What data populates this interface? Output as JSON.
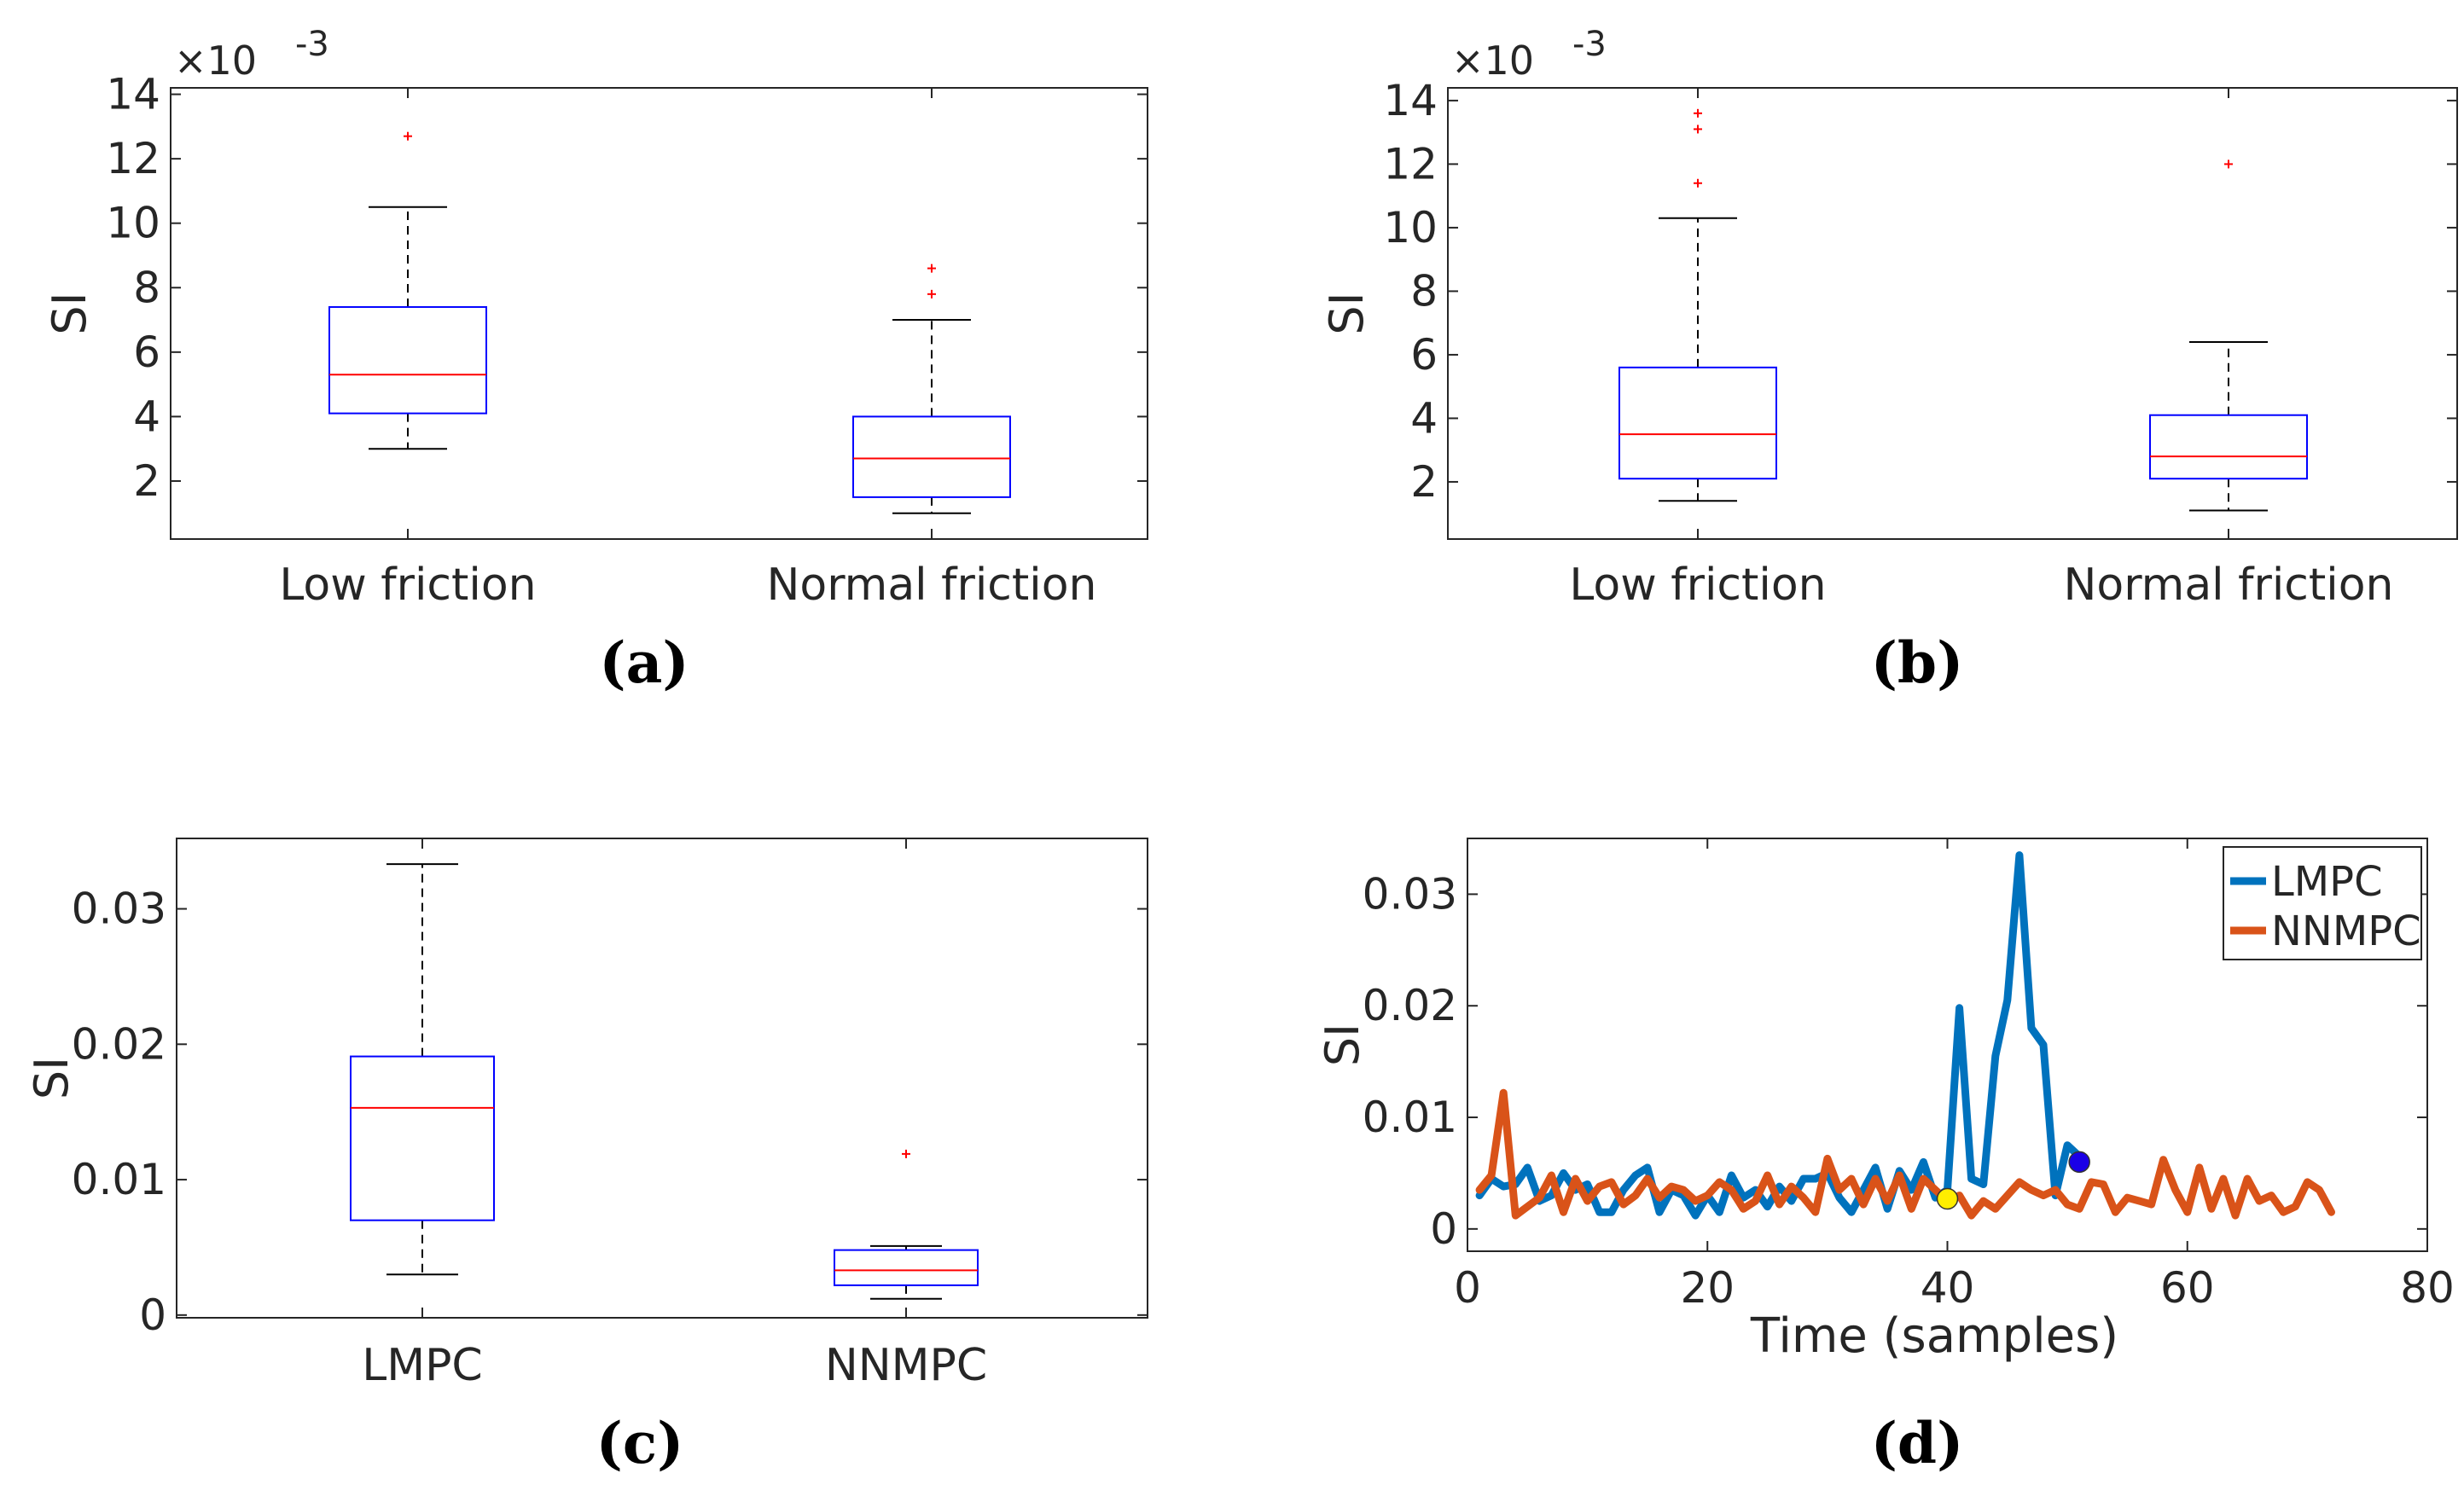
{
  "colors": {
    "box": "#0000ff",
    "median": "#ff0000",
    "outlier": "#ff0000",
    "whisker": "#000000",
    "frame": "#262626",
    "lmpc": "#0072bd",
    "nnmpc": "#d95319",
    "yellow_marker": "#ffee00",
    "blue_marker": "#1a00e6"
  },
  "chart_data": [
    {
      "type": "box",
      "caption": "(a)",
      "ylabel": "SI",
      "exponent_label": "×10",
      "exponent": "-3",
      "ylim": [
        0.2,
        14.2
      ],
      "yticks": [
        2,
        4,
        6,
        8,
        10,
        12,
        14
      ],
      "ytick_labels": [
        "2",
        "4",
        "6",
        "8",
        "10",
        "12",
        "14"
      ],
      "categories": [
        "Low friction",
        "Normal friction"
      ],
      "boxes": [
        {
          "min": 3.0,
          "q1": 4.1,
          "median": 5.3,
          "q3": 7.4,
          "max": 10.5,
          "outliers": [
            12.7
          ]
        },
        {
          "min": 1.0,
          "q1": 1.5,
          "median": 2.7,
          "q3": 4.0,
          "max": 7.0,
          "outliers": [
            7.8,
            8.6
          ]
        }
      ]
    },
    {
      "type": "box",
      "caption": "(b)",
      "ylabel": "SI",
      "exponent_label": "×10",
      "exponent": "-3",
      "ylim": [
        0.2,
        14.4
      ],
      "yticks": [
        2,
        4,
        6,
        8,
        10,
        12,
        14
      ],
      "ytick_labels": [
        "2",
        "4",
        "6",
        "8",
        "10",
        "12",
        "14"
      ],
      "categories": [
        "Low friction",
        "Normal friction"
      ],
      "boxes": [
        {
          "min": 1.4,
          "q1": 2.1,
          "median": 3.5,
          "q3": 5.6,
          "max": 10.3,
          "outliers": [
            11.4,
            13.1,
            13.6
          ]
        },
        {
          "min": 1.1,
          "q1": 2.1,
          "median": 2.8,
          "q3": 4.1,
          "max": 6.4,
          "outliers": [
            12.0
          ]
        }
      ]
    },
    {
      "type": "box",
      "caption": "(c)",
      "ylabel": "SI",
      "ylim": [
        -0.0002,
        0.0352
      ],
      "yticks": [
        0,
        0.01,
        0.02,
        0.03
      ],
      "ytick_labels": [
        "0",
        "0.01",
        "0.02",
        "0.03"
      ],
      "categories": [
        "LMPC",
        "NNMPC"
      ],
      "boxes": [
        {
          "min": 0.003,
          "q1": 0.007,
          "median": 0.0153,
          "q3": 0.0191,
          "max": 0.0333,
          "outliers": []
        },
        {
          "min": 0.0012,
          "q1": 0.0022,
          "median": 0.0033,
          "q3": 0.0048,
          "max": 0.0051,
          "outliers": [
            0.0119
          ]
        }
      ]
    },
    {
      "type": "line",
      "caption": "(d)",
      "ylabel": "SI",
      "xlabel": "Time (samples)",
      "xlim": [
        0,
        80
      ],
      "ylim": [
        -0.002,
        0.035
      ],
      "xticks": [
        0,
        20,
        40,
        60,
        80
      ],
      "xtick_labels": [
        "0",
        "20",
        "40",
        "60",
        "80"
      ],
      "yticks": [
        0,
        0.01,
        0.02,
        0.03
      ],
      "ytick_labels": [
        "0",
        "0.01",
        "0.02",
        "0.03"
      ],
      "legend": "top-right",
      "series": [
        {
          "name": "LMPC",
          "x": [
            1,
            2,
            3,
            4,
            5,
            6,
            7,
            8,
            9,
            10,
            11,
            12,
            13,
            14,
            15,
            16,
            17,
            18,
            19,
            20,
            21,
            22,
            23,
            24,
            25,
            26,
            27,
            28,
            29,
            30,
            31,
            32,
            33,
            34,
            35,
            36,
            37,
            38,
            39,
            40,
            41,
            42,
            43,
            44,
            45,
            46,
            47,
            48,
            49,
            50,
            51
          ],
          "y": [
            0.003,
            0.0045,
            0.0038,
            0.004,
            0.0055,
            0.0025,
            0.003,
            0.005,
            0.0035,
            0.004,
            0.0015,
            0.0015,
            0.0035,
            0.0048,
            0.0055,
            0.0015,
            0.0035,
            0.003,
            0.0012,
            0.003,
            0.0015,
            0.0048,
            0.0028,
            0.0035,
            0.002,
            0.0038,
            0.0025,
            0.0045,
            0.0045,
            0.005,
            0.0028,
            0.0015,
            0.0035,
            0.0055,
            0.0018,
            0.0052,
            0.0035,
            0.006,
            0.0028,
            0.0035,
            0.0198,
            0.0045,
            0.004,
            0.0155,
            0.0205,
            0.0335,
            0.018,
            0.0165,
            0.003,
            0.0075,
            0.0065
          ]
        },
        {
          "name": "NNMPC",
          "x": [
            1,
            2,
            3,
            4,
            5,
            6,
            7,
            8,
            9,
            10,
            11,
            12,
            13,
            14,
            15,
            16,
            17,
            18,
            19,
            20,
            21,
            22,
            23,
            24,
            25,
            26,
            27,
            28,
            29,
            30,
            31,
            32,
            33,
            34,
            35,
            36,
            37,
            38,
            39,
            40,
            41,
            42,
            43,
            44,
            45,
            46,
            47,
            48,
            49,
            50,
            51,
            52,
            53,
            54,
            55,
            56,
            57,
            58,
            59,
            60,
            61,
            62,
            63,
            64,
            65,
            66,
            67,
            68,
            69,
            70,
            71,
            72
          ],
          "y": [
            0.0035,
            0.0048,
            0.0122,
            0.0012,
            0.002,
            0.0028,
            0.0048,
            0.0015,
            0.0045,
            0.0025,
            0.0038,
            0.0042,
            0.0022,
            0.003,
            0.0045,
            0.0028,
            0.0038,
            0.0035,
            0.0025,
            0.003,
            0.0042,
            0.0035,
            0.0018,
            0.0025,
            0.0048,
            0.0022,
            0.0038,
            0.0028,
            0.0015,
            0.0063,
            0.0035,
            0.0045,
            0.0022,
            0.0045,
            0.0025,
            0.0048,
            0.0018,
            0.0045,
            0.0035,
            0.0025,
            0.003,
            0.0012,
            0.0025,
            0.0018,
            0.003,
            0.0042,
            0.0035,
            0.003,
            0.0035,
            0.0022,
            0.0018,
            0.0042,
            0.004,
            0.0015,
            0.0028,
            0.0025,
            0.0022,
            0.0062,
            0.0035,
            0.0015,
            0.0055,
            0.0018,
            0.0045,
            0.0012,
            0.0045,
            0.0025,
            0.003,
            0.0015,
            0.002,
            0.0042,
            0.0035,
            0.0015
          ]
        }
      ],
      "markers": [
        {
          "name": "yellow-marker",
          "x": 40,
          "y": 0.0027,
          "color": "#ffee00"
        },
        {
          "name": "blue-marker",
          "x": 51,
          "y": 0.006,
          "color": "#1a00e6"
        }
      ]
    }
  ]
}
